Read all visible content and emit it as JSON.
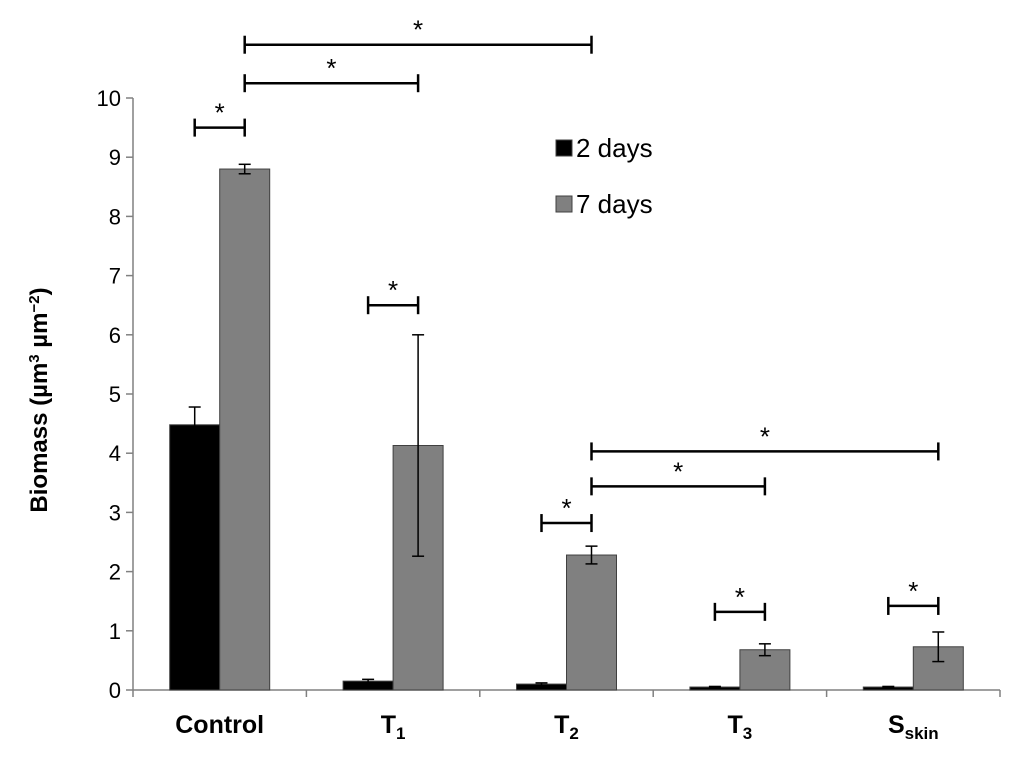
{
  "chart_data": {
    "type": "bar",
    "title": "",
    "ylabel_main": "Biomass (µm",
    "ylabel_sup1": "3",
    "ylabel_mid": " µm",
    "ylabel_sup2": "−2",
    "ylabel_end": ")",
    "xlabel": "",
    "ylim": [
      0,
      10
    ],
    "yticks": [
      0,
      1,
      2,
      3,
      4,
      5,
      6,
      7,
      8,
      9,
      10
    ],
    "grid": false,
    "legend_position": "top-center",
    "categories": [
      {
        "main": "Control",
        "sub": ""
      },
      {
        "main": "T",
        "sub": "1"
      },
      {
        "main": "T",
        "sub": "2"
      },
      {
        "main": "T",
        "sub": "3"
      },
      {
        "main": "S",
        "sub": "skin"
      }
    ],
    "series": [
      {
        "name": "2 days",
        "color": "#000000",
        "values": [
          4.48,
          0.15,
          0.1,
          0.05,
          0.05
        ],
        "errors": [
          0.3,
          0.03,
          0.02,
          0.01,
          0.01
        ]
      },
      {
        "name": "7 days",
        "color": "#808080",
        "values": [
          8.8,
          4.13,
          2.28,
          0.68,
          0.73
        ],
        "errors": [
          0.08,
          1.87,
          0.15,
          0.1,
          0.25
        ]
      }
    ],
    "significance": [
      {
        "from": [
          0,
          0
        ],
        "to": [
          0,
          1
        ],
        "y": 9.5,
        "label": "*"
      },
      {
        "from": [
          0,
          1
        ],
        "to": [
          1,
          1
        ],
        "y": 10.25,
        "label": "*"
      },
      {
        "from": [
          0,
          1
        ],
        "to": [
          2,
          1
        ],
        "y": 10.9,
        "label": "*"
      },
      {
        "from": [
          1,
          0
        ],
        "to": [
          1,
          1
        ],
        "y": 6.5,
        "label": "*"
      },
      {
        "from": [
          2,
          0
        ],
        "to": [
          2,
          1
        ],
        "y": 2.82,
        "label": "*"
      },
      {
        "from": [
          2,
          1
        ],
        "to": [
          3,
          1
        ],
        "y": 3.44,
        "label": "*"
      },
      {
        "from": [
          2,
          1
        ],
        "to": [
          4,
          1
        ],
        "y": 4.03,
        "label": "*"
      },
      {
        "from": [
          3,
          0
        ],
        "to": [
          3,
          1
        ],
        "y": 1.32,
        "label": "*"
      },
      {
        "from": [
          4,
          0
        ],
        "to": [
          4,
          1
        ],
        "y": 1.42,
        "label": "*"
      }
    ]
  }
}
